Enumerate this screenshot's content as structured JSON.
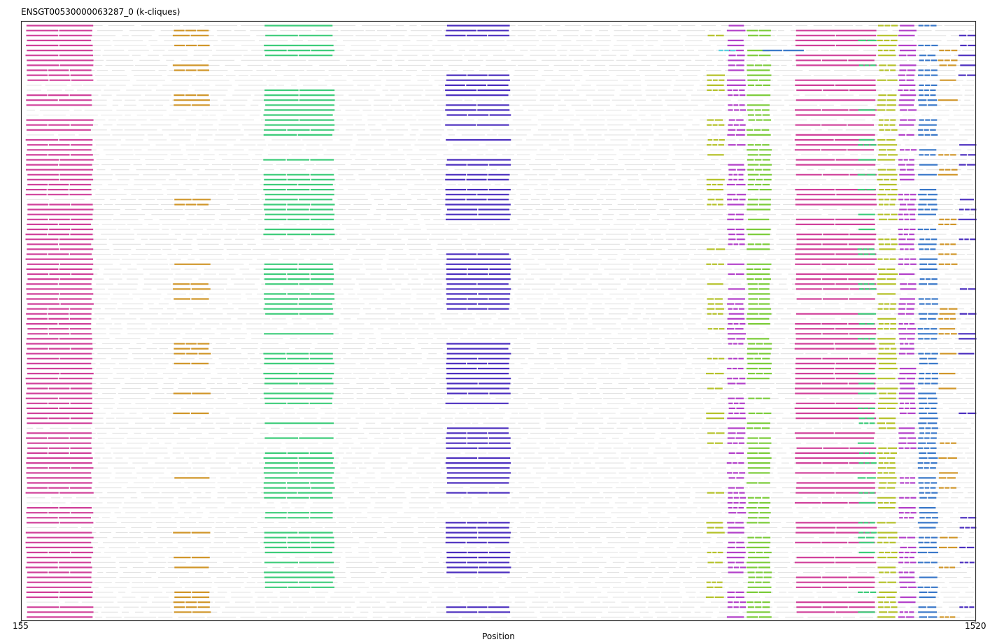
{
  "chart_data": {
    "type": "alignment-track",
    "title": "ENSGT00530000063287_0 (k-cliques)",
    "xlabel": "Position",
    "ylabel": "",
    "xlim": [
      155,
      1520
    ],
    "x_ticks": [
      "155",
      "1520"
    ],
    "row_count": 120,
    "row_pitch_note": "approx one sequence row per ~7 px",
    "background_color": "#e3e3e3",
    "cliques": [
      {
        "color": "#d0409a",
        "x_start": 163,
        "x_end": 257,
        "rows": "nearly all"
      },
      {
        "color": "#d0962a",
        "x_start": 373,
        "x_end": 425,
        "rows": "sparse"
      },
      {
        "color": "#3dcc7a",
        "x_start": 503,
        "x_end": 602,
        "rows": "banded"
      },
      {
        "color": "#4c2fbf",
        "x_start": 763,
        "x_end": 854,
        "rows": "banded"
      },
      {
        "color": "#b5c12a",
        "x_start": 1136,
        "x_end": 1160,
        "rows": "sparse"
      },
      {
        "color": "#b240c9",
        "x_start": 1166,
        "x_end": 1190,
        "rows": "frequent"
      },
      {
        "color": "#7ccc3a",
        "x_start": 1194,
        "x_end": 1227,
        "rows": "frequent"
      },
      {
        "color": "#d0409a",
        "x_start": 1263,
        "x_end": 1377,
        "rows": "frequent"
      },
      {
        "color": "#3dcc7a",
        "x_start": 1353,
        "x_end": 1377,
        "rows": "sparse"
      },
      {
        "color": "#b5c12a",
        "x_start": 1381,
        "x_end": 1407,
        "rows": "frequent"
      },
      {
        "color": "#b240c9",
        "x_start": 1411,
        "x_end": 1434,
        "rows": "frequent"
      },
      {
        "color": "#3a78c9",
        "x_start": 1439,
        "x_end": 1465,
        "rows": "frequent"
      },
      {
        "color": "#d0962a",
        "x_start": 1468,
        "x_end": 1493,
        "rows": "sparse"
      },
      {
        "color": "#4c2fbf",
        "x_start": 1497,
        "x_end": 1520,
        "rows": "sparse"
      },
      {
        "color": "#5ad0e0",
        "x_start": 1153,
        "x_end": 1178,
        "rows": "single"
      },
      {
        "color": "#3a78c9",
        "x_start": 1217,
        "x_end": 1275,
        "rows": "single"
      }
    ]
  }
}
